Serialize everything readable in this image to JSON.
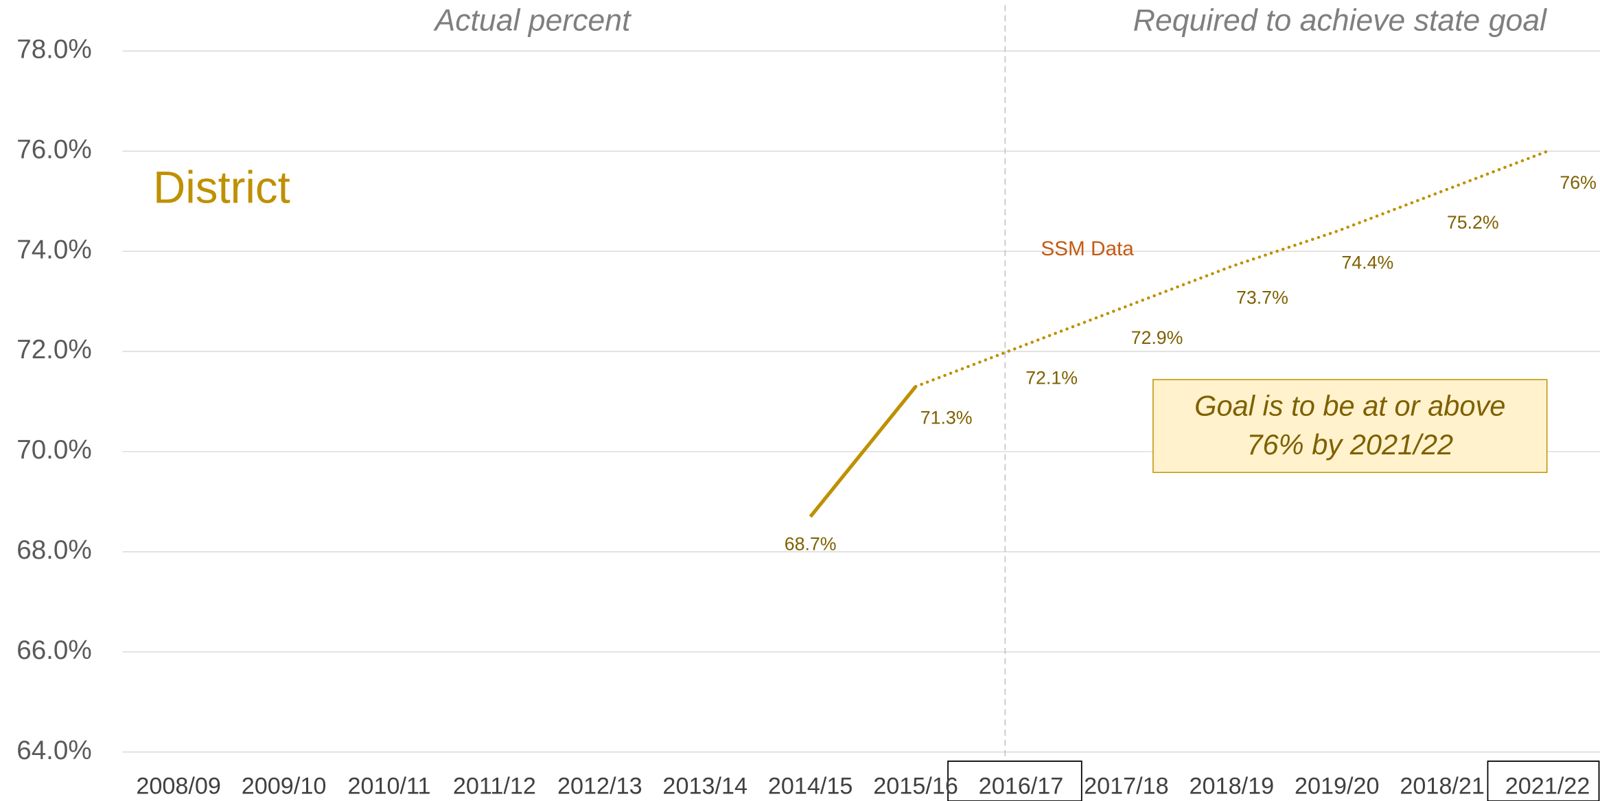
{
  "chart_data": {
    "type": "line",
    "annotations": {
      "left_header": "Actual percent",
      "right_header": "Required to achieve state goal",
      "district": "District",
      "source": "SSM Data",
      "goal": [
        "Goal is to be at or above",
        "76% by 2021/22"
      ]
    },
    "categories": [
      "2008/09",
      "2009/10",
      "2010/11",
      "2011/12",
      "2012/13",
      "2013/14",
      "2014/15",
      "2015/16",
      "2016/17",
      "2017/18",
      "2018/19",
      "2019/20",
      "2018/21",
      "2021/22"
    ],
    "series": [
      {
        "color": "#bf9000",
        "style": "solid",
        "values": [
          null,
          null,
          null,
          null,
          null,
          null,
          68.7,
          71.3,
          null,
          null,
          null,
          null,
          null,
          null
        ],
        "value_labels": [
          null,
          null,
          null,
          null,
          null,
          null,
          "68.7%",
          "71.3%",
          null,
          null,
          null,
          null,
          null,
          null
        ]
      },
      {
        "color": "#bf9000",
        "style": "dotted",
        "values": [
          null,
          null,
          null,
          null,
          null,
          null,
          null,
          71.3,
          72.1,
          72.9,
          73.7,
          74.4,
          75.2,
          76
        ],
        "value_labels": [
          null,
          null,
          null,
          null,
          null,
          null,
          null,
          null,
          "72.1%",
          "72.9%",
          "73.7%",
          "74.4%",
          "75.2%",
          "76%"
        ]
      }
    ],
    "ylim": [
      64,
      78
    ],
    "yticks": [
      {
        "value": 64,
        "label": "64.0%"
      },
      {
        "value": 66,
        "label": "66.0%"
      },
      {
        "value": 68,
        "label": "68.0%"
      },
      {
        "value": 70,
        "label": "70.0%"
      },
      {
        "value": 72,
        "label": "72.0%"
      },
      {
        "value": 74,
        "label": "74.0%"
      },
      {
        "value": 76,
        "label": "76.0%"
      },
      {
        "value": 78,
        "label": "78.0%"
      }
    ],
    "grid": true
  }
}
